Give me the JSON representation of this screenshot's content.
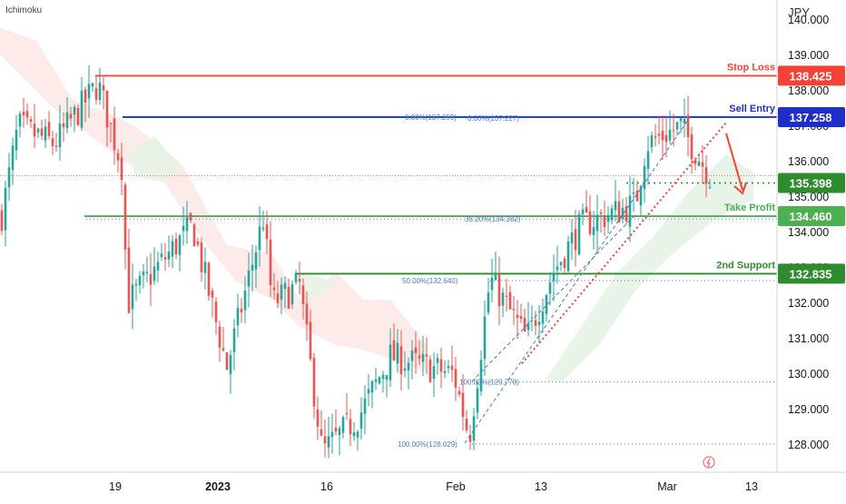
{
  "indicator": "Ichimoku",
  "currency": "JPY",
  "colors": {
    "up": "#26a69a",
    "down": "#ef5350",
    "stop": "#f44336",
    "entry": "#1e2fc8",
    "support": "#2e8b2e",
    "tp": "#4caf50",
    "cloud_bear": "#fbe4e2",
    "cloud_bull": "#e6f3e6",
    "fib": "#4a79c9"
  },
  "chart_data": {
    "type": "candlestick",
    "y_unit": "JPY",
    "ylim": [
      127.5,
      140.2
    ],
    "y_ticks": [
      "140.000",
      "139.000",
      "138.000",
      "137.000",
      "136.000",
      "135.000",
      "134.000",
      "133.000",
      "132.000",
      "131.000",
      "130.000",
      "129.000",
      "128.000"
    ],
    "x_ticks": [
      "19",
      "2023",
      "16",
      "Feb",
      "13",
      "Mar",
      "13"
    ],
    "current_price": 135.6,
    "levels": [
      {
        "name": "Stop Loss",
        "price": "138.425",
        "value": 138.425,
        "color": "#f44336",
        "style": "solid"
      },
      {
        "name": "Sell Entry",
        "price": "137.258",
        "value": 137.258,
        "color": "#1e2fc8",
        "style": "solid"
      },
      {
        "name": "",
        "price": "135.398",
        "value": 135.398,
        "color": "#2e8b2e",
        "style": "dotted"
      },
      {
        "name": "Take Profit",
        "price": "134.460",
        "value": 134.46,
        "color": "#4caf50",
        "style": "solid"
      },
      {
        "name": "2nd Support",
        "price": "132.835",
        "value": 132.835,
        "color": "#2e8b2e",
        "style": "solid"
      }
    ],
    "fib_labels": [
      "0.00%(137.259)",
      "0.00%(137.227)",
      "38.20%(134.382)",
      "50.00%(132.640)",
      "100.00%(129.778)",
      "100.00%(128.029)"
    ],
    "fib_levels": [
      129.778,
      128.029,
      132.64
    ],
    "anchors": [
      {
        "label": "19",
        "value": 138.2
      },
      {
        "label": "2023",
        "value": 134.4
      },
      {
        "label": "16",
        "value": 127.8
      },
      {
        "label": "Feb",
        "value": 128.2
      },
      {
        "label": "13",
        "value": 133.8
      },
      {
        "label": "Mar",
        "value": 137.0
      },
      {
        "label": "13",
        "value": 135.6
      }
    ]
  }
}
